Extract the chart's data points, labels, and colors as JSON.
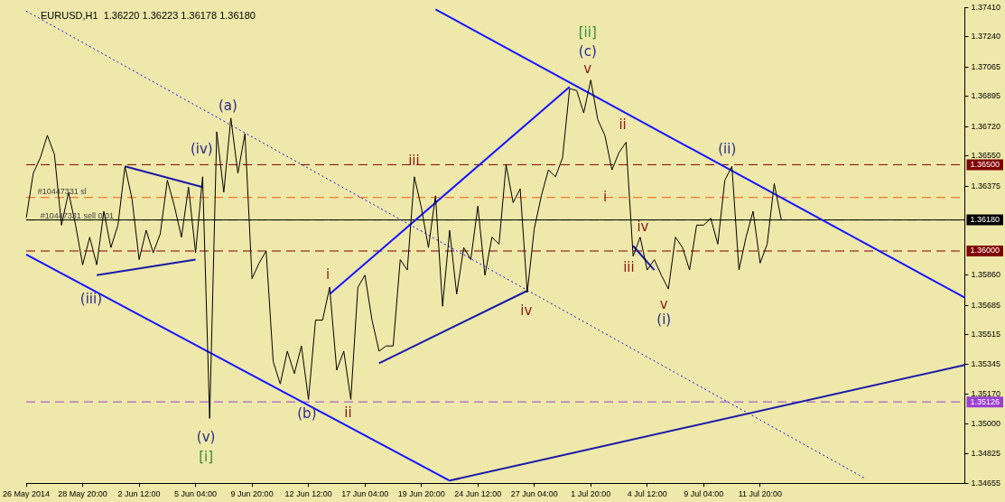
{
  "chart_data": {
    "type": "line",
    "title": "EURUSD,H1  1.36220 1.36223 1.36178 1.36180",
    "marker": "none",
    "categories": [
      "26 May 2014",
      null,
      null,
      null,
      null,
      null,
      null,
      null,
      "28 May 20:00",
      null,
      null,
      null,
      null,
      null,
      null,
      null,
      "2 Jun 12:00",
      null,
      null,
      null,
      null,
      null,
      null,
      null,
      "5 Jun 04:00",
      null,
      null,
      null,
      null,
      null,
      null,
      null,
      "9 Jun 20:00",
      null,
      null,
      null,
      null,
      null,
      null,
      null,
      "12 Jun 12:00",
      null,
      null,
      null,
      null,
      null,
      null,
      null,
      "17 Jun 04:00",
      null,
      null,
      null,
      null,
      null,
      null,
      null,
      "19 Jun 20:00",
      null,
      null,
      null,
      null,
      null,
      null,
      null,
      "24 Jun 12:00",
      null,
      null,
      null,
      null,
      null,
      null,
      null,
      "27 Jun 04:00",
      null,
      null,
      null,
      null,
      null,
      null,
      null,
      "1 Jul 20:00",
      null,
      null,
      null,
      null,
      null,
      null,
      null,
      "4 Jul 12:00",
      null,
      null,
      null,
      null,
      null,
      null,
      null,
      "9 Jul 04:00",
      null,
      null,
      null,
      null,
      null,
      null,
      null,
      "11 Jul 20:00",
      null,
      null,
      null,
      null,
      null,
      null,
      null,
      null,
      null,
      null,
      null,
      null,
      null,
      null,
      null,
      null,
      null,
      null,
      null,
      null,
      null,
      null,
      null,
      null,
      null,
      null,
      null,
      null,
      null
    ],
    "ylim": [
      1.34655,
      1.3741
    ],
    "yticks": [
      {
        "value": 1.3741,
        "label": "1.37410"
      },
      {
        "value": 1.3724,
        "label": "1.37240"
      },
      {
        "value": 1.37065,
        "label": "1.37065"
      },
      {
        "value": 1.36895,
        "label": "1.36895"
      },
      {
        "value": 1.3672,
        "label": "1.36720"
      },
      {
        "value": 1.3655,
        "label": "1.36550"
      },
      {
        "value": 1.36375,
        "label": "1.36375"
      },
      {
        "value": 1.3586,
        "label": "1.35860"
      },
      {
        "value": 1.35685,
        "label": "1.35685"
      },
      {
        "value": 1.35515,
        "label": "1.35515"
      },
      {
        "value": 1.35345,
        "label": "1.35345"
      },
      {
        "value": 1.3517,
        "label": "1.35170"
      },
      {
        "value": 1.35,
        "label": "1.35000"
      },
      {
        "value": 1.34825,
        "label": "1.34825"
      },
      {
        "value": 1.34655,
        "label": "1.34655"
      }
    ],
    "series": [
      {
        "color": "#000000",
        "values": [
          1.3619,
          1.3645,
          1.3654,
          1.3667,
          1.3656,
          1.3615,
          1.3634,
          1.3615,
          1.3592,
          1.3608,
          1.3592,
          1.3623,
          1.3602,
          1.3615,
          1.3649,
          1.363,
          1.3595,
          1.3612,
          1.3599,
          1.361,
          1.3641,
          1.3626,
          1.3608,
          1.3637,
          1.3599,
          1.3643,
          1.3503,
          1.3669,
          1.3634,
          1.3677,
          1.3645,
          1.3668,
          1.3584,
          1.3593,
          1.36,
          1.3536,
          1.3523,
          1.3542,
          1.3529,
          1.3545,
          1.3514,
          1.356,
          1.356,
          1.3579,
          1.3531,
          1.3542,
          1.3514,
          1.3579,
          1.3586,
          1.356,
          1.3542,
          1.3545,
          1.3545,
          1.3595,
          1.3589,
          1.3643,
          1.3625,
          1.3602,
          1.3632,
          1.3568,
          1.3612,
          1.3575,
          1.3602,
          1.3595,
          1.3626,
          1.3586,
          1.3608,
          1.3604,
          1.365,
          1.3628,
          1.3636,
          1.3576,
          1.3613,
          1.3632,
          1.3647,
          1.3643,
          1.3654,
          1.3694,
          1.3693,
          1.368,
          1.3699,
          1.3676,
          1.3667,
          1.3647,
          1.3657,
          1.3663,
          1.3597,
          1.3608,
          1.3589,
          1.3595,
          1.3586,
          1.3578,
          1.3608,
          1.3602,
          1.3589,
          1.3615,
          1.3615,
          1.3619,
          1.3604,
          1.3641,
          1.3649,
          1.3589,
          1.3608,
          1.3623,
          1.3593,
          1.3604,
          1.3639,
          1.3618,
          null,
          null,
          null,
          null,
          null,
          null,
          null,
          null,
          null,
          null,
          null,
          null,
          null,
          null,
          null,
          null,
          null,
          null,
          null,
          null,
          null,
          null,
          null,
          null,
          null,
          null
        ]
      },
      {
        "type": "line",
        "color": "#1414ff",
        "values": [
          null,
          null,
          null,
          null,
          null,
          null,
          null,
          null,
          null,
          null,
          null,
          null,
          null,
          null,
          null,
          null,
          null,
          null,
          null,
          null,
          null,
          null,
          null,
          null,
          null,
          null,
          null,
          null,
          null,
          null,
          null,
          null,
          null,
          null,
          null,
          null,
          null,
          null,
          null,
          null,
          null,
          null,
          null,
          null,
          null,
          null,
          null,
          null,
          null,
          null,
          null,
          null,
          null,
          null,
          null,
          null,
          null,
          null,
          1.374,
          null,
          null,
          null,
          null,
          null,
          null,
          null,
          null,
          null,
          null,
          null,
          null,
          null,
          null,
          null,
          null,
          null,
          null,
          null,
          null,
          null,
          null,
          null,
          null,
          null,
          null,
          null,
          null,
          null,
          null,
          null,
          null,
          null,
          null,
          null,
          null,
          null,
          null,
          null,
          null,
          null,
          null,
          null,
          null,
          null,
          null,
          null,
          null,
          null,
          null,
          null,
          null,
          null,
          null,
          null,
          null,
          null,
          null,
          null,
          null,
          null,
          null,
          null,
          null,
          null,
          null,
          null,
          null,
          null,
          null,
          null,
          null,
          null,
          null,
          1.3573
        ]
      },
      {
        "type": "line",
        "color": "#1414ff",
        "values": [
          1.3598,
          null,
          null,
          null,
          null,
          null,
          null,
          null,
          null,
          null,
          null,
          null,
          null,
          null,
          null,
          null,
          null,
          null,
          null,
          null,
          null,
          null,
          null,
          null,
          null,
          null,
          null,
          null,
          null,
          null,
          null,
          null,
          null,
          null,
          null,
          null,
          null,
          null,
          null,
          null,
          null,
          null,
          null,
          null,
          null,
          null,
          null,
          null,
          null,
          null,
          null,
          null,
          null,
          null,
          null,
          null,
          null,
          null,
          null,
          null,
          1.3467,
          null,
          null,
          null,
          null,
          null,
          null,
          null,
          null,
          null,
          null,
          null,
          null,
          null,
          null,
          null,
          null,
          null,
          null,
          null,
          null,
          null,
          null,
          null,
          null,
          null,
          null,
          null,
          null,
          null,
          null,
          null,
          null,
          null,
          null,
          null,
          null,
          null,
          null,
          null,
          null,
          null,
          null,
          null,
          null,
          null,
          null,
          null,
          null,
          null,
          null,
          null,
          null,
          null,
          null,
          null,
          null,
          null,
          null,
          null,
          null,
          null,
          null,
          null,
          null,
          null,
          null,
          null,
          null,
          null,
          null,
          null,
          null,
          null
        ]
      },
      {
        "type": "line",
        "color": "#1a1aa8",
        "values": [
          null,
          null,
          null,
          null,
          null,
          null,
          null,
          null,
          null,
          null,
          null,
          null,
          null,
          null,
          null,
          null,
          null,
          null,
          null,
          null,
          null,
          null,
          null,
          null,
          null,
          null,
          null,
          null,
          null,
          null,
          null,
          null,
          null,
          null,
          null,
          null,
          null,
          null,
          null,
          null,
          null,
          null,
          null,
          null,
          null,
          null,
          null,
          null,
          null,
          null,
          null,
          null,
          null,
          null,
          null,
          null,
          null,
          null,
          null,
          null,
          1.3467,
          null,
          null,
          null,
          null,
          null,
          null,
          null,
          null,
          null,
          null,
          null,
          null,
          null,
          null,
          null,
          null,
          null,
          null,
          null,
          null,
          null,
          null,
          null,
          null,
          null,
          null,
          null,
          null,
          null,
          null,
          null,
          null,
          null,
          null,
          null,
          null,
          null,
          null,
          null,
          null,
          null,
          null,
          null,
          null,
          null,
          null,
          null,
          null,
          null,
          null,
          null,
          null,
          null,
          null,
          null,
          null,
          null,
          null,
          null,
          null,
          null,
          null,
          null,
          null,
          null,
          null,
          null,
          null,
          null,
          null,
          null,
          null,
          1.3534
        ]
      },
      {
        "type": "line",
        "color": "#1a1aa8",
        "values": [
          null,
          null,
          null,
          null,
          null,
          null,
          null,
          null,
          null,
          null,
          null,
          null,
          null,
          null,
          1.3649,
          null,
          null,
          null,
          null,
          null,
          null,
          null,
          null,
          null,
          null,
          1.3637,
          null,
          null,
          null,
          null,
          null,
          null,
          null,
          null,
          null,
          null,
          null,
          null,
          null,
          null,
          null,
          null,
          null,
          null,
          null,
          null,
          null,
          null,
          null,
          null,
          null,
          null,
          null,
          null,
          null,
          null,
          null,
          null,
          null,
          null,
          null,
          null,
          null,
          null,
          null,
          null,
          null,
          null,
          null,
          null,
          null,
          null,
          null,
          null,
          null,
          null,
          null,
          null,
          null,
          null,
          null,
          null,
          null,
          null,
          null,
          null,
          null,
          null,
          null,
          null,
          null,
          null,
          null,
          null,
          null,
          null,
          null,
          null,
          null,
          null,
          null,
          null,
          null,
          null,
          null,
          null,
          null,
          null,
          null,
          null,
          null,
          null,
          null,
          null,
          null,
          null,
          null,
          null,
          null,
          null,
          null,
          null,
          null,
          null,
          null,
          null,
          null,
          null,
          null,
          null,
          null,
          null,
          null,
          null
        ]
      },
      {
        "type": "line",
        "color": "#1a1aa8",
        "values": [
          null,
          null,
          null,
          null,
          null,
          null,
          null,
          null,
          null,
          null,
          1.3586,
          null,
          null,
          null,
          null,
          null,
          null,
          null,
          null,
          null,
          null,
          null,
          null,
          null,
          1.3595,
          null,
          null,
          null,
          null,
          null,
          null,
          null,
          null,
          null,
          null,
          null,
          null,
          null,
          null,
          null,
          null,
          null,
          null,
          null,
          null,
          null,
          null,
          null,
          null,
          null,
          null,
          null,
          null,
          null,
          null,
          null,
          null,
          null,
          null,
          null,
          null,
          null,
          null,
          null,
          null,
          null,
          null,
          null,
          null,
          null,
          null,
          null,
          null,
          null,
          null,
          null,
          null,
          null,
          null,
          null,
          null,
          null,
          null,
          null,
          null,
          null,
          null,
          null,
          null,
          null,
          null,
          null,
          null,
          null,
          null,
          null,
          null,
          null,
          null,
          null,
          null,
          null,
          null,
          null,
          null,
          null,
          null,
          null,
          null,
          null,
          null,
          null,
          null,
          null,
          null,
          null,
          null,
          null,
          null,
          null,
          null,
          null,
          null,
          null,
          null,
          null,
          null,
          null,
          null,
          null,
          null,
          null,
          null,
          null
        ]
      },
      {
        "type": "line",
        "color": "#1414ff",
        "values": [
          null,
          null,
          null,
          null,
          null,
          null,
          null,
          null,
          null,
          null,
          null,
          null,
          null,
          null,
          null,
          null,
          null,
          null,
          null,
          null,
          null,
          null,
          null,
          null,
          null,
          null,
          null,
          null,
          null,
          null,
          null,
          null,
          null,
          null,
          null,
          null,
          null,
          null,
          null,
          null,
          null,
          null,
          null,
          1.3575,
          null,
          null,
          null,
          null,
          null,
          null,
          null,
          null,
          null,
          null,
          null,
          null,
          null,
          null,
          null,
          null,
          null,
          null,
          null,
          null,
          null,
          null,
          null,
          null,
          null,
          null,
          null,
          null,
          null,
          null,
          null,
          null,
          null,
          1.3695,
          null,
          null,
          null,
          null,
          null,
          null,
          null,
          null,
          null,
          null,
          null,
          null,
          null,
          null,
          null,
          null,
          null,
          null,
          null,
          null,
          null,
          null,
          null,
          null,
          null,
          null,
          null,
          null,
          null,
          null,
          null,
          null,
          null,
          null,
          null,
          null,
          null,
          null,
          null,
          null,
          null,
          null,
          null,
          null,
          null,
          null,
          null,
          null,
          null,
          null,
          null,
          null,
          null,
          null,
          null,
          null
        ]
      },
      {
        "type": "line",
        "color": "#1a1aa8",
        "values": [
          null,
          null,
          null,
          null,
          null,
          null,
          null,
          null,
          null,
          null,
          null,
          null,
          null,
          null,
          null,
          null,
          null,
          null,
          null,
          null,
          null,
          null,
          null,
          null,
          null,
          null,
          null,
          null,
          null,
          null,
          null,
          null,
          null,
          null,
          null,
          null,
          null,
          null,
          null,
          null,
          null,
          null,
          null,
          null,
          null,
          null,
          null,
          null,
          null,
          null,
          1.3535,
          null,
          null,
          null,
          null,
          null,
          null,
          null,
          null,
          null,
          null,
          null,
          null,
          null,
          null,
          null,
          null,
          null,
          null,
          null,
          null,
          1.3577,
          null,
          null,
          null,
          null,
          null,
          null,
          null,
          null,
          null,
          null,
          null,
          null,
          null,
          null,
          null,
          null,
          null,
          null,
          null,
          null,
          null,
          null,
          null,
          null,
          null,
          null,
          null,
          null,
          null,
          null,
          null,
          null,
          null,
          null,
          null,
          null,
          null,
          null,
          null,
          null,
          null,
          null,
          null,
          null,
          null,
          null,
          null,
          null,
          null,
          null,
          null,
          null,
          null,
          null,
          null,
          null,
          null,
          null,
          null,
          null,
          null,
          null
        ]
      },
      {
        "type": "line",
        "color": "#1a1aa8",
        "values": [
          null,
          null,
          null,
          null,
          null,
          null,
          null,
          null,
          null,
          null,
          null,
          null,
          null,
          null,
          null,
          null,
          null,
          null,
          null,
          null,
          null,
          null,
          null,
          null,
          null,
          null,
          null,
          null,
          null,
          null,
          null,
          null,
          null,
          null,
          null,
          null,
          null,
          null,
          null,
          null,
          null,
          null,
          null,
          null,
          null,
          null,
          null,
          null,
          null,
          null,
          null,
          null,
          null,
          null,
          null,
          null,
          null,
          null,
          null,
          null,
          null,
          null,
          null,
          null,
          null,
          null,
          null,
          null,
          null,
          null,
          null,
          null,
          null,
          null,
          null,
          null,
          null,
          null,
          null,
          null,
          null,
          null,
          null,
          null,
          null,
          null,
          1.3603,
          null,
          null,
          1.3589,
          null,
          null,
          null,
          null,
          null,
          null,
          null,
          null,
          null,
          null,
          null,
          null,
          null,
          null,
          null,
          null,
          null,
          null,
          null,
          null,
          null,
          null,
          null,
          null,
          null,
          null,
          null,
          null,
          null,
          null,
          null,
          null,
          null,
          null,
          null,
          null,
          null,
          null,
          null,
          null,
          null,
          null,
          null,
          null
        ]
      },
      {
        "type": "line",
        "color": "#1414ff",
        "line_style": "dotted",
        "values": [
          1.3739,
          null,
          null,
          null,
          null,
          null,
          null,
          null,
          null,
          null,
          null,
          null,
          null,
          null,
          null,
          null,
          null,
          null,
          null,
          null,
          null,
          null,
          null,
          null,
          null,
          null,
          null,
          null,
          null,
          null,
          null,
          null,
          null,
          null,
          null,
          null,
          null,
          null,
          null,
          null,
          null,
          null,
          null,
          null,
          null,
          null,
          null,
          null,
          null,
          null,
          null,
          null,
          null,
          null,
          null,
          null,
          null,
          null,
          null,
          null,
          null,
          null,
          null,
          null,
          null,
          null,
          null,
          null,
          null,
          null,
          null,
          null,
          null,
          null,
          null,
          null,
          null,
          null,
          null,
          null,
          null,
          null,
          null,
          null,
          null,
          null,
          null,
          null,
          null,
          null,
          null,
          null,
          null,
          null,
          null,
          null,
          null,
          null,
          null,
          null,
          null,
          null,
          null,
          null,
          null,
          null,
          null,
          null,
          null,
          null,
          null,
          null,
          null,
          null,
          null,
          null,
          null,
          null,
          null,
          1.3468,
          null,
          null,
          null,
          null,
          null,
          null,
          null,
          null,
          null,
          null,
          null,
          null,
          null,
          null
        ]
      }
    ],
    "ref_lines": [
      {
        "axis": "y",
        "value": 1.365,
        "label": "1.36500",
        "color": "#800000",
        "line_style": "dashed"
      },
      {
        "axis": "y",
        "value": 1.3631,
        "color": "#ff5a14",
        "line_style": "dashed"
      },
      {
        "axis": "y",
        "value": 1.3618,
        "color": "#1e8c1e",
        "line_style": "dashed"
      },
      {
        "axis": "y",
        "value": 1.3618,
        "label": "1.36180",
        "color": "#000000",
        "line_style": "solid"
      },
      {
        "axis": "y",
        "value": 1.36,
        "label": "1.36000",
        "color": "#800000",
        "line_style": "dashed"
      },
      {
        "axis": "y",
        "value": 1.35126,
        "label": "1.35126",
        "color": "#9a40d0",
        "line_style": "dashed"
      }
    ],
    "annotations": [
      "#10447331 sl",
      "#10447331 sell 0.01",
      "(a)",
      "(iv)",
      "(iii)",
      "(v)",
      "[i]",
      "(b)",
      "i",
      "ii",
      "iii",
      "iv",
      "[ii]",
      "(c)",
      "v",
      "ii",
      "i",
      "iv",
      "iii",
      "v",
      "(i)",
      "(ii)"
    ]
  }
}
